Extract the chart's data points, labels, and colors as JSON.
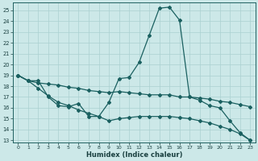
{
  "xlabel": "Humidex (Indice chaleur)",
  "background_color": "#cce8e8",
  "grid_color": "#aad0d0",
  "line_color": "#1a6060",
  "xlim": [
    -0.5,
    23.5
  ],
  "ylim": [
    12.8,
    25.7
  ],
  "yticks": [
    13,
    14,
    15,
    16,
    17,
    18,
    19,
    20,
    21,
    22,
    23,
    24,
    25
  ],
  "xticks": [
    0,
    1,
    2,
    3,
    4,
    5,
    6,
    7,
    8,
    9,
    10,
    11,
    12,
    13,
    14,
    15,
    16,
    17,
    18,
    19,
    20,
    21,
    22,
    23
  ],
  "line1_x": [
    0,
    1,
    2,
    3,
    4,
    5,
    6,
    7,
    8,
    9,
    10,
    11,
    12,
    13,
    14,
    15,
    16,
    17,
    18,
    19,
    20,
    21,
    22,
    23
  ],
  "line1_y": [
    19.0,
    18.5,
    18.5,
    17.0,
    16.2,
    16.1,
    16.4,
    15.2,
    15.2,
    16.5,
    18.7,
    18.8,
    20.2,
    22.7,
    25.2,
    25.3,
    24.1,
    17.0,
    16.7,
    16.2,
    16.0,
    14.8,
    13.7,
    13.0
  ],
  "line2_x": [
    0,
    1,
    2,
    3,
    4,
    5,
    6,
    7,
    8,
    9,
    10,
    11,
    12,
    13,
    14,
    15,
    16,
    17,
    18,
    19,
    20,
    21,
    22,
    23
  ],
  "line2_y": [
    19.0,
    18.5,
    18.3,
    18.2,
    18.1,
    17.9,
    17.8,
    17.6,
    17.5,
    17.4,
    17.5,
    17.4,
    17.3,
    17.2,
    17.2,
    17.2,
    17.0,
    17.0,
    16.9,
    16.8,
    16.6,
    16.5,
    16.3,
    16.1
  ],
  "line3_x": [
    0,
    1,
    2,
    3,
    4,
    5,
    6,
    7,
    8,
    9,
    10,
    11,
    12,
    13,
    14,
    15,
    16,
    17,
    18,
    19,
    20,
    21,
    22,
    23
  ],
  "line3_y": [
    19.0,
    18.5,
    17.8,
    17.1,
    16.5,
    16.2,
    15.8,
    15.5,
    15.2,
    14.8,
    15.0,
    15.1,
    15.2,
    15.2,
    15.2,
    15.2,
    15.1,
    15.0,
    14.8,
    14.6,
    14.3,
    14.0,
    13.6,
    13.0
  ]
}
